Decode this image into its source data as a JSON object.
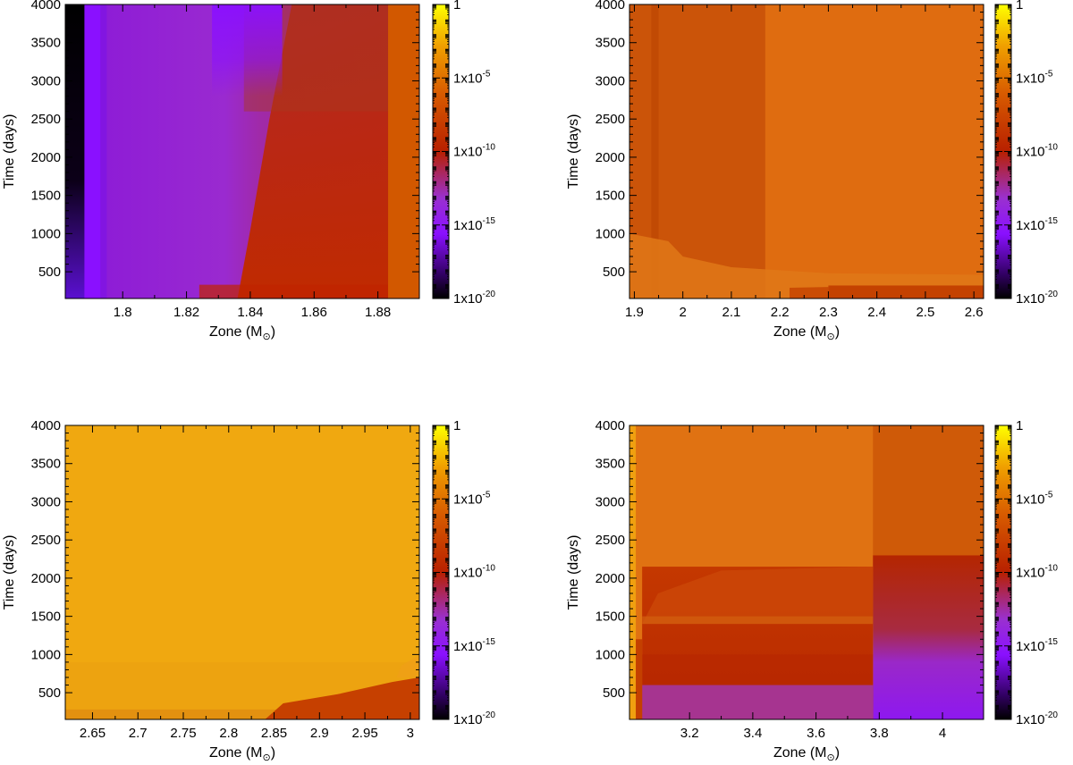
{
  "colorbar": {
    "labels": [
      {
        "value": 1,
        "base": "1",
        "exp": ""
      },
      {
        "value": -5,
        "base": "1x10",
        "exp": "-5"
      },
      {
        "value": -10,
        "base": "1x10",
        "exp": "-10"
      },
      {
        "value": -15,
        "base": "1x10",
        "exp": "-15"
      },
      {
        "value": -20,
        "base": "1x10",
        "exp": "-20"
      }
    ],
    "log_range": [
      -20,
      0
    ],
    "palette": [
      "#000000",
      "#300060",
      "#8a10ff",
      "#9a30d0",
      "#b82000",
      "#d85c00",
      "#f0a000",
      "#ffff00"
    ]
  },
  "chart_data": [
    {
      "type": "heatmap",
      "name": "panel-top-left",
      "xlabel": "Zone (M",
      "xlabel_symbol": "⊙",
      "xlabel_suffix": ")",
      "ylabel": "Time (days)",
      "xlim": [
        1.782,
        1.893
      ],
      "ylim": [
        150,
        4000
      ],
      "xticks": [
        1.8,
        1.82,
        1.84,
        1.86,
        1.88
      ],
      "xtick_labels": [
        "1.8",
        "1.82",
        "1.84",
        "1.86",
        "1.88"
      ],
      "yticks": [
        500,
        1000,
        1500,
        2000,
        2500,
        3000,
        3500,
        4000
      ],
      "ytick_labels": [
        "500",
        "1000",
        "1500",
        "2000",
        "2500",
        "3000",
        "3500",
        "4000"
      ],
      "color_scale": "log",
      "zlim": [
        1e-20,
        1
      ]
    },
    {
      "type": "heatmap",
      "name": "panel-top-right",
      "xlabel": "Zone (M",
      "xlabel_symbol": "⊙",
      "xlabel_suffix": ")",
      "ylabel": "Time (days)",
      "xlim": [
        1.89,
        2.62
      ],
      "ylim": [
        150,
        4000
      ],
      "xticks": [
        1.9,
        2,
        2.1,
        2.2,
        2.3,
        2.4,
        2.5,
        2.6
      ],
      "xtick_labels": [
        "1.9",
        "2",
        "2.1",
        "2.2",
        "2.3",
        "2.4",
        "2.5",
        "2.6"
      ],
      "yticks": [
        500,
        1000,
        1500,
        2000,
        2500,
        3000,
        3500,
        4000
      ],
      "ytick_labels": [
        "500",
        "1000",
        "1500",
        "2000",
        "2500",
        "3000",
        "3500",
        "4000"
      ],
      "color_scale": "log",
      "zlim": [
        1e-20,
        1
      ]
    },
    {
      "type": "heatmap",
      "name": "panel-bottom-left",
      "xlabel": "Zone (M",
      "xlabel_symbol": "⊙",
      "xlabel_suffix": ")",
      "ylabel": "Time (days)",
      "xlim": [
        2.62,
        3.01
      ],
      "ylim": [
        150,
        4000
      ],
      "xticks": [
        2.65,
        2.7,
        2.75,
        2.8,
        2.85,
        2.9,
        2.95,
        3
      ],
      "xtick_labels": [
        "2.65",
        "2.7",
        "2.75",
        "2.8",
        "2.85",
        "2.9",
        "2.95",
        "3"
      ],
      "yticks": [
        500,
        1000,
        1500,
        2000,
        2500,
        3000,
        3500,
        4000
      ],
      "ytick_labels": [
        "500",
        "1000",
        "1500",
        "2000",
        "2500",
        "3000",
        "3500",
        "4000"
      ],
      "color_scale": "log",
      "zlim": [
        1e-20,
        1
      ]
    },
    {
      "type": "heatmap",
      "name": "panel-bottom-right",
      "xlabel": "Zone (M",
      "xlabel_symbol": "⊙",
      "xlabel_suffix": ")",
      "ylabel": "Time (days)",
      "xlim": [
        3.01,
        4.13
      ],
      "ylim": [
        150,
        4000
      ],
      "xticks": [
        3.2,
        3.4,
        3.6,
        3.8,
        4
      ],
      "xtick_labels": [
        "3.2",
        "3.4",
        "3.6",
        "3.8",
        "4"
      ],
      "yticks": [
        500,
        1000,
        1500,
        2000,
        2500,
        3000,
        3500,
        4000
      ],
      "ytick_labels": [
        "500",
        "1000",
        "1500",
        "2000",
        "2500",
        "3000",
        "3500",
        "4000"
      ],
      "color_scale": "log",
      "zlim": [
        1e-20,
        1
      ]
    }
  ]
}
